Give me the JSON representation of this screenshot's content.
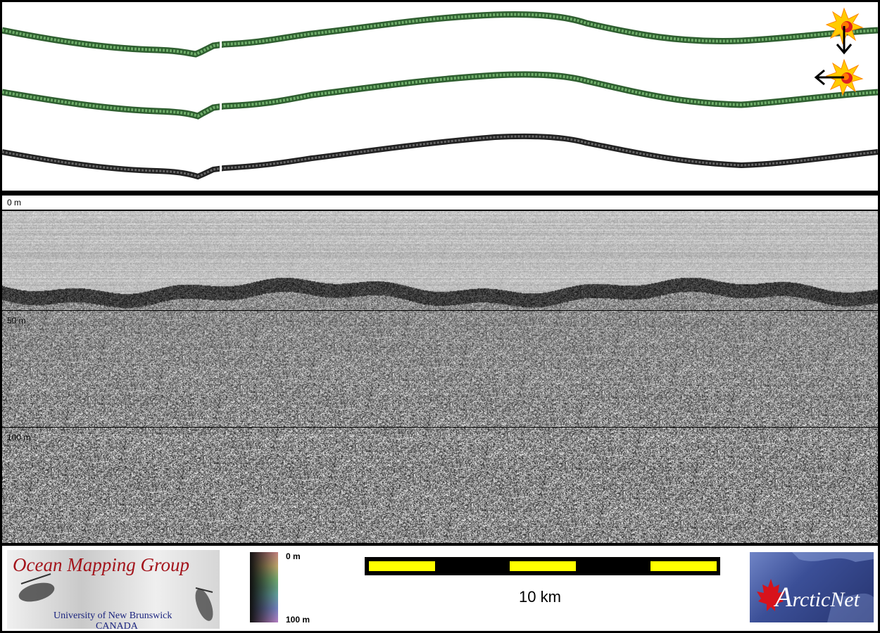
{
  "depth_axis": {
    "labels": [
      "0 m",
      "50 m",
      "100 m"
    ]
  },
  "footer": {
    "omg_logo": {
      "title": "Ocean Mapping Group",
      "line1": "University of New Brunswick",
      "line2": "CANADA"
    },
    "color_scale": {
      "top_label": "0 m",
      "bottom_label": "100 m"
    },
    "scale_bar": {
      "label": "10 km"
    },
    "arcticnet_logo": {
      "first_letter": "A",
      "rest": "rcticNet"
    }
  },
  "colors": {
    "swath_green": "#4f8f4a",
    "swath_gray": "#3a3a3a",
    "scale_yellow": "#ffff00",
    "omg_red": "#a3141b",
    "omg_blue": "#1a237e",
    "sun_orange": "#ff9900",
    "sun_red": "#e01010"
  },
  "icons": [
    "sun-illumination-icon",
    "arrow-down-icon",
    "arrow-left-icon",
    "maple-leaf-icon",
    "sonar-fish-icon"
  ]
}
